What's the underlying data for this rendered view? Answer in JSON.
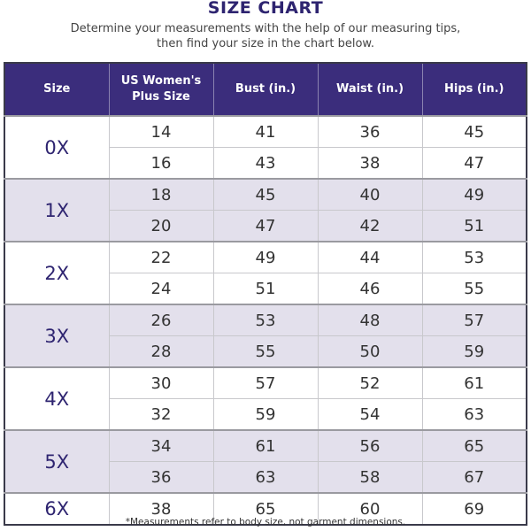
{
  "title": "SIZE CHART",
  "subtitle_line1": "Determine your measurements with the help of our measuring tips,",
  "subtitle_line2": "then find your size in the chart below.",
  "headers": [
    "Size",
    "US Women's Plus Size",
    "Bust (in.)",
    "Waist (in.)",
    "Hips (in.)"
  ],
  "groups": [
    {
      "size": "0X",
      "rows": [
        [
          "14",
          "41",
          "36",
          "45"
        ],
        [
          "16",
          "43",
          "38",
          "47"
        ]
      ]
    },
    {
      "size": "1X",
      "rows": [
        [
          "18",
          "45",
          "40",
          "49"
        ],
        [
          "20",
          "47",
          "42",
          "51"
        ]
      ]
    },
    {
      "size": "2X",
      "rows": [
        [
          "22",
          "49",
          "44",
          "53"
        ],
        [
          "24",
          "51",
          "46",
          "55"
        ]
      ]
    },
    {
      "size": "3X",
      "rows": [
        [
          "26",
          "53",
          "48",
          "57"
        ],
        [
          "28",
          "55",
          "50",
          "59"
        ]
      ]
    },
    {
      "size": "4X",
      "rows": [
        [
          "30",
          "57",
          "52",
          "61"
        ],
        [
          "32",
          "59",
          "54",
          "63"
        ]
      ]
    },
    {
      "size": "5X",
      "rows": [
        [
          "34",
          "61",
          "56",
          "65"
        ],
        [
          "36",
          "63",
          "58",
          "67"
        ]
      ]
    },
    {
      "size": "6X",
      "rows": [
        [
          "38",
          "65",
          "60",
          "69"
        ]
      ]
    }
  ],
  "footnote": "*Measurements refer to body size, not garment dimensions.",
  "colors": {
    "header": "#3b2d7c",
    "shaded_row": "#e3e0ec",
    "size_text": "#2e2470"
  }
}
